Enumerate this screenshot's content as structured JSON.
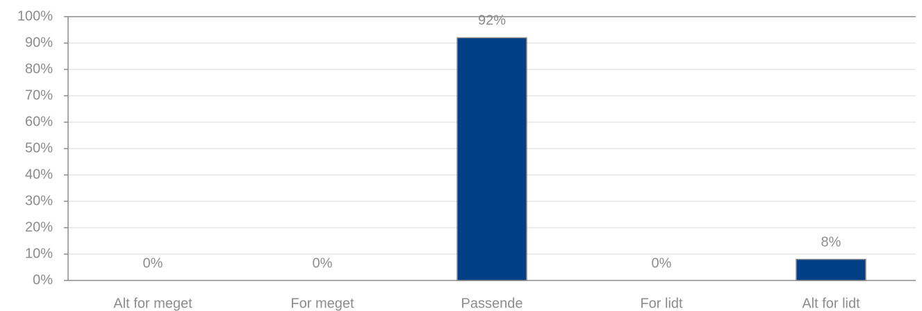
{
  "chart_data": {
    "type": "bar",
    "categories": [
      "Alt for meget",
      "For meget",
      "Passende",
      "For lidt",
      "Alt for lidt"
    ],
    "values": [
      0,
      0,
      92,
      0,
      8
    ],
    "value_labels": [
      "0%",
      "0%",
      "92%",
      "0%",
      "8%"
    ],
    "color": "#003f85",
    "ylim": [
      0,
      100
    ],
    "yticks": [
      {
        "value": 0,
        "label": "0%"
      },
      {
        "value": 10,
        "label": "10%"
      },
      {
        "value": 20,
        "label": "20%"
      },
      {
        "value": 30,
        "label": "30%"
      },
      {
        "value": 40,
        "label": "40%"
      },
      {
        "value": 50,
        "label": "50%"
      },
      {
        "value": 60,
        "label": "60%"
      },
      {
        "value": 70,
        "label": "70%"
      },
      {
        "value": 80,
        "label": "80%"
      },
      {
        "value": 90,
        "label": "90%"
      },
      {
        "value": 100,
        "label": "100%"
      }
    ],
    "grid": true
  }
}
